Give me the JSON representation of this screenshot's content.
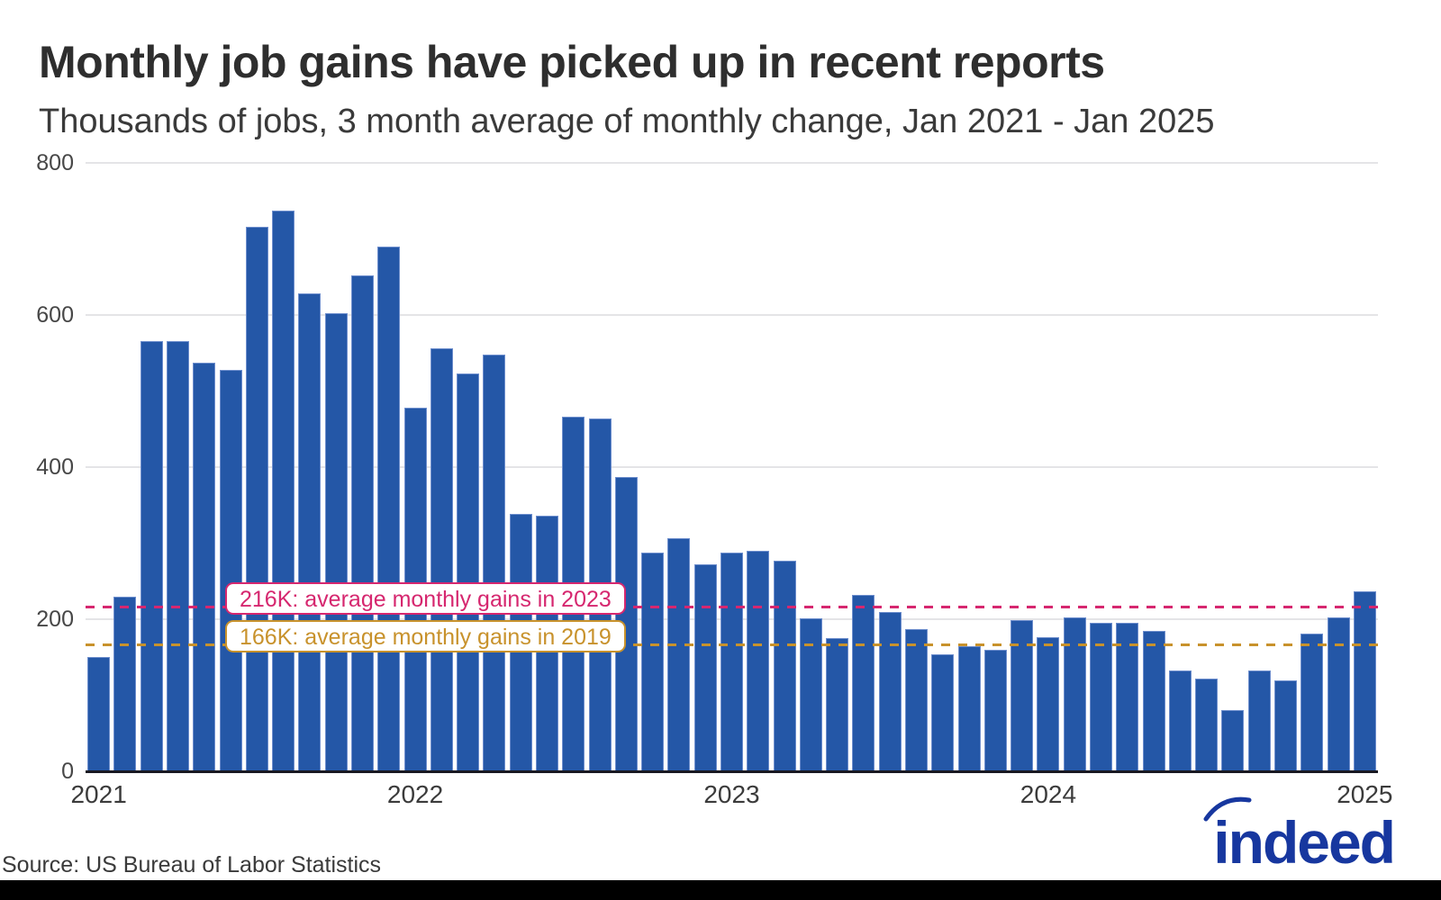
{
  "header": {
    "title": "Monthly job gains have picked up in recent reports",
    "subtitle": "Thousands of jobs, 3 month average of monthly change, Jan 2021 - Jan 2025"
  },
  "chart_data": {
    "type": "bar",
    "title": "Monthly job gains have picked up in recent reports",
    "subtitle": "Thousands of jobs, 3 month average of monthly change, Jan 2021 - Jan 2025",
    "ylabel": "Thousands of jobs",
    "ylim": [
      0,
      800
    ],
    "yticks": [
      0,
      200,
      400,
      600,
      800
    ],
    "grid": "horizontal",
    "bar_color": "#2457a7",
    "bar_edge_color": "#6e8ecd",
    "categories": [
      "Jan 2021",
      "Feb 2021",
      "Mar 2021",
      "Apr 2021",
      "May 2021",
      "Jun 2021",
      "Jul 2021",
      "Aug 2021",
      "Sep 2021",
      "Oct 2021",
      "Nov 2021",
      "Dec 2021",
      "Jan 2022",
      "Feb 2022",
      "Mar 2022",
      "Apr 2022",
      "May 2022",
      "Jun 2022",
      "Jul 2022",
      "Aug 2022",
      "Sep 2022",
      "Oct 2022",
      "Nov 2022",
      "Dec 2022",
      "Jan 2023",
      "Feb 2023",
      "Mar 2023",
      "Apr 2023",
      "May 2023",
      "Jun 2023",
      "Jul 2023",
      "Aug 2023",
      "Sep 2023",
      "Oct 2023",
      "Nov 2023",
      "Dec 2023",
      "Jan 2024",
      "Feb 2024",
      "Mar 2024",
      "Apr 2024",
      "May 2024",
      "Jun 2024",
      "Jul 2024",
      "Aug 2024",
      "Sep 2024",
      "Oct 2024",
      "Nov 2024",
      "Dec 2024",
      "Jan 2025"
    ],
    "values": [
      150,
      230,
      566,
      566,
      537,
      528,
      716,
      737,
      628,
      603,
      652,
      690,
      478,
      556,
      523,
      548,
      339,
      336,
      466,
      464,
      387,
      288,
      307,
      272,
      288,
      290,
      277,
      201,
      175,
      232,
      209,
      187,
      154,
      165,
      160,
      199,
      176,
      203,
      195,
      195,
      185,
      133,
      122,
      80,
      133,
      119,
      181,
      203,
      237
    ],
    "xticks": [
      {
        "label": "2021",
        "month_index": 0
      },
      {
        "label": "2022",
        "month_index": 12
      },
      {
        "label": "2023",
        "month_index": 24
      },
      {
        "label": "2024",
        "month_index": 36
      },
      {
        "label": "2025",
        "month_index": 48
      }
    ],
    "reference_lines": [
      {
        "value": 216,
        "label": "216K: average monthly gains in 2023",
        "color": "#d6276f",
        "style": "dashed"
      },
      {
        "value": 166,
        "label": "166K: average monthly gains in 2019",
        "color": "#c8922c",
        "style": "dashed"
      }
    ]
  },
  "footer": {
    "source": "Source: US Bureau of Labor Statistics",
    "logo_text": "indeed"
  }
}
